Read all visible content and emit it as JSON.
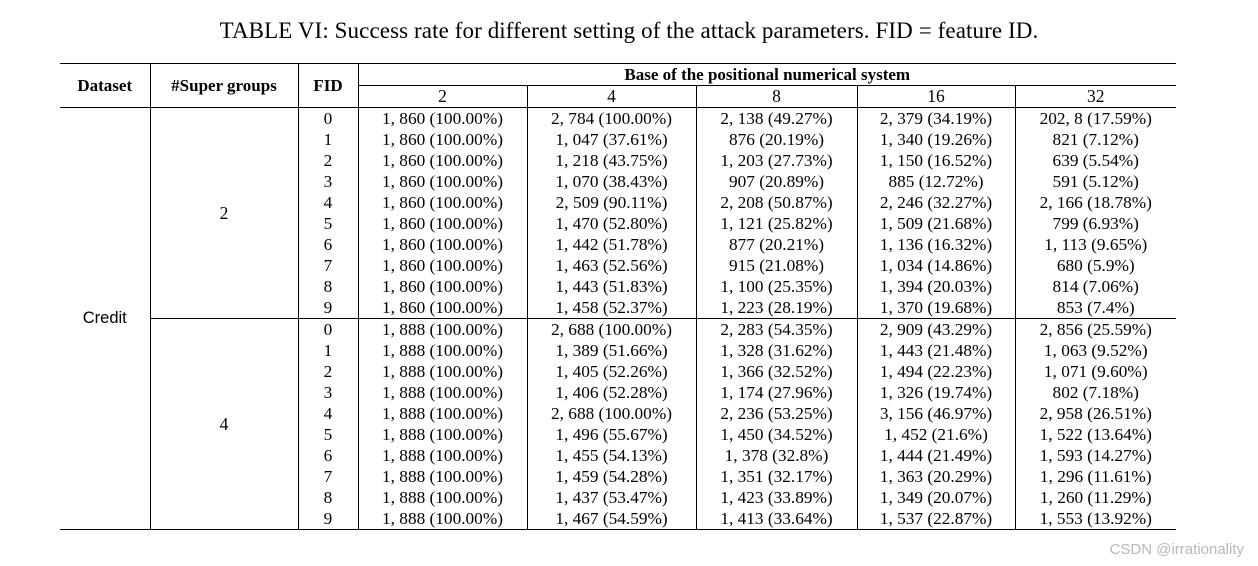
{
  "caption": "TABLE VI: Success rate for different setting of the attack parameters. FID = feature ID.",
  "table": {
    "headers": {
      "dataset": "Dataset",
      "super_groups": "#Super groups",
      "fid": "FID",
      "base_group": "Base of the positional numerical system",
      "bases": [
        "2",
        "4",
        "8",
        "16",
        "32"
      ]
    },
    "dataset": "Credit",
    "groups": [
      {
        "super_groups": "2",
        "rows": [
          {
            "fid": "0",
            "cells": [
              "1, 860 (100.00%)",
              "2, 784 (100.00%)",
              "2, 138 (49.27%)",
              "2, 379 (34.19%)",
              "202, 8 (17.59%)"
            ]
          },
          {
            "fid": "1",
            "cells": [
              "1, 860 (100.00%)",
              "1, 047 (37.61%)",
              "876 (20.19%)",
              "1, 340 (19.26%)",
              "821 (7.12%)"
            ]
          },
          {
            "fid": "2",
            "cells": [
              "1, 860 (100.00%)",
              "1, 218 (43.75%)",
              "1, 203 (27.73%)",
              "1, 150 (16.52%)",
              "639 (5.54%)"
            ]
          },
          {
            "fid": "3",
            "cells": [
              "1, 860 (100.00%)",
              "1, 070 (38.43%)",
              "907 (20.89%)",
              "885 (12.72%)",
              "591 (5.12%)"
            ]
          },
          {
            "fid": "4",
            "cells": [
              "1, 860 (100.00%)",
              "2, 509 (90.11%)",
              "2, 208 (50.87%)",
              "2, 246 (32.27%)",
              "2, 166 (18.78%)"
            ]
          },
          {
            "fid": "5",
            "cells": [
              "1, 860 (100.00%)",
              "1, 470 (52.80%)",
              "1, 121 (25.82%)",
              "1, 509 (21.68%)",
              "799 (6.93%)"
            ]
          },
          {
            "fid": "6",
            "cells": [
              "1, 860 (100.00%)",
              "1, 442 (51.78%)",
              "877 (20.21%)",
              "1, 136 (16.32%)",
              "1, 113 (9.65%)"
            ]
          },
          {
            "fid": "7",
            "cells": [
              "1, 860 (100.00%)",
              "1, 463 (52.56%)",
              "915 (21.08%)",
              "1, 034 (14.86%)",
              "680 (5.9%)"
            ]
          },
          {
            "fid": "8",
            "cells": [
              "1, 860 (100.00%)",
              "1, 443 (51.83%)",
              "1, 100 (25.35%)",
              "1, 394 (20.03%)",
              "814 (7.06%)"
            ]
          },
          {
            "fid": "9",
            "cells": [
              "1, 860 (100.00%)",
              "1, 458 (52.37%)",
              "1, 223 (28.19%)",
              "1, 370 (19.68%)",
              "853 (7.4%)"
            ]
          }
        ]
      },
      {
        "super_groups": "4",
        "rows": [
          {
            "fid": "0",
            "cells": [
              "1, 888 (100.00%)",
              "2, 688 (100.00%)",
              "2, 283 (54.35%)",
              "2, 909 (43.29%)",
              "2, 856 (25.59%)"
            ]
          },
          {
            "fid": "1",
            "cells": [
              "1, 888 (100.00%)",
              "1, 389 (51.66%)",
              "1, 328 (31.62%)",
              "1, 443 (21.48%)",
              "1, 063 (9.52%)"
            ]
          },
          {
            "fid": "2",
            "cells": [
              "1, 888 (100.00%)",
              "1, 405 (52.26%)",
              "1, 366 (32.52%)",
              "1, 494 (22.23%)",
              "1, 071 (9.60%)"
            ]
          },
          {
            "fid": "3",
            "cells": [
              "1, 888 (100.00%)",
              "1, 406 (52.28%)",
              "1, 174 (27.96%)",
              "1, 326 (19.74%)",
              "802 (7.18%)"
            ]
          },
          {
            "fid": "4",
            "cells": [
              "1, 888 (100.00%)",
              "2, 688 (100.00%)",
              "2, 236 (53.25%)",
              "3, 156 (46.97%)",
              "2, 958 (26.51%)"
            ]
          },
          {
            "fid": "5",
            "cells": [
              "1, 888 (100.00%)",
              "1, 496 (55.67%)",
              "1, 450 (34.52%)",
              "1, 452 (21.6%)",
              "1, 522 (13.64%)"
            ]
          },
          {
            "fid": "6",
            "cells": [
              "1, 888 (100.00%)",
              "1, 455 (54.13%)",
              "1, 378 (32.8%)",
              "1, 444 (21.49%)",
              "1, 593 (14.27%)"
            ]
          },
          {
            "fid": "7",
            "cells": [
              "1, 888 (100.00%)",
              "1, 459 (54.28%)",
              "1, 351 (32.17%)",
              "1, 363 (20.29%)",
              "1, 296 (11.61%)"
            ]
          },
          {
            "fid": "8",
            "cells": [
              "1, 888 (100.00%)",
              "1, 437 (53.47%)",
              "1, 423 (33.89%)",
              "1, 349 (20.07%)",
              "1, 260 (11.29%)"
            ]
          },
          {
            "fid": "9",
            "cells": [
              "1, 888 (100.00%)",
              "1, 467 (54.59%)",
              "1, 413 (33.64%)",
              "1, 537 (22.87%)",
              "1, 553 (13.92%)"
            ]
          }
        ]
      }
    ]
  },
  "watermark": "CSDN @irrationality"
}
